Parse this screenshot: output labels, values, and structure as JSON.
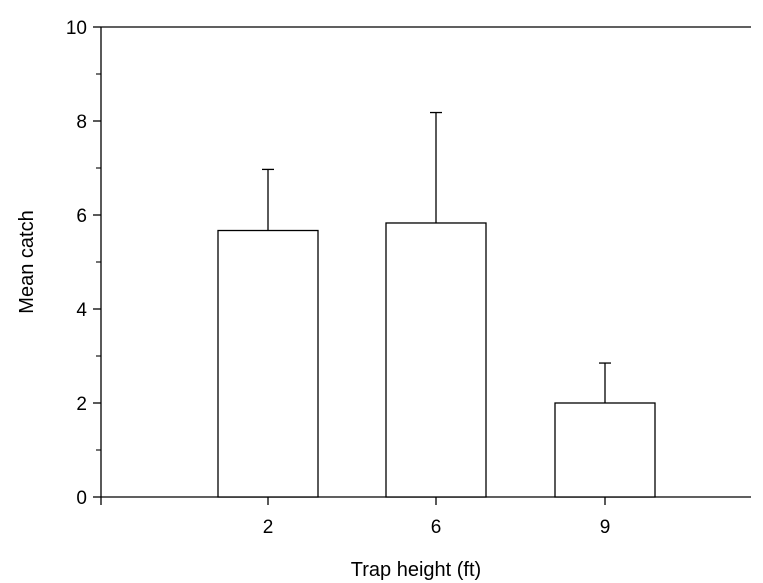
{
  "chart_data": {
    "type": "bar",
    "categories": [
      "2",
      "6",
      "9"
    ],
    "values": [
      5.67,
      5.83,
      2.0
    ],
    "error_upper": [
      6.97,
      8.18,
      2.85
    ],
    "xlabel": "Trap height (ft)",
    "ylabel": "Mean catch",
    "ylim": [
      0,
      10
    ],
    "yticks": [
      "0",
      "2",
      "4",
      "6",
      "8",
      "10"
    ],
    "grid": false,
    "legend": "none",
    "bar_fill": "#ffffff",
    "bar_stroke": "#000000"
  }
}
